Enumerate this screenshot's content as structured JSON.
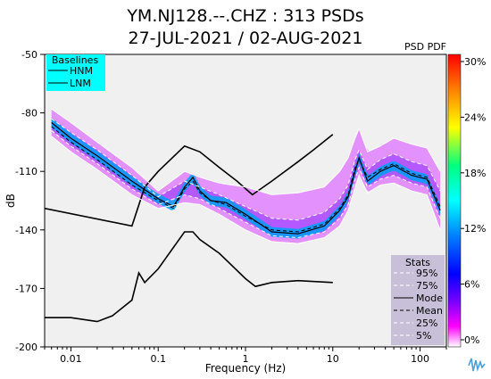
{
  "chart_data": {
    "type": "heatmap",
    "title_line1": "YM.NJ128.--.CHZ : 313 PSDs",
    "title_line2": "27-JUL-2021 / 02-AUG-2021",
    "xlabel": "Frequency (Hz)",
    "ylabel": "dB",
    "x_scale": "log",
    "xlim": [
      0.005,
      200
    ],
    "ylim": [
      -200,
      -50
    ],
    "x_ticks": [
      0.01,
      0.1,
      1,
      10,
      100
    ],
    "x_tick_labels": [
      "0.01",
      "0.1",
      "1 Hz",
      "10",
      "100"
    ],
    "y_ticks": [
      -50,
      -80,
      -110,
      -140,
      -170,
      -200
    ],
    "y_tick_labels": [
      "-50",
      "-80",
      "-110",
      "-140",
      "-170",
      "-200"
    ],
    "colorbar": {
      "label": "PSD PDF",
      "ticks": [
        "30%",
        "24%",
        "18%",
        "12%",
        "6%",
        "0%"
      ],
      "colors": [
        "#ff0000",
        "#ff8000",
        "#ffff00",
        "#00ff80",
        "#00ffff",
        "#0080ff",
        "#0000ff",
        "#8000ff",
        "#ff00ff",
        "#ffffff"
      ]
    },
    "baselines_legend": {
      "title": "Baselines",
      "items": [
        "HNM",
        "LNM"
      ],
      "bg_color": "#00ffff"
    },
    "stats_legend": {
      "title": "Stats",
      "items": [
        {
          "label": "95%",
          "style": "white-dash"
        },
        {
          "label": "75%",
          "style": "white-dash"
        },
        {
          "label": "Mode",
          "style": "black-solid"
        },
        {
          "label": "Mean",
          "style": "black-dash"
        },
        {
          "label": "25%",
          "style": "white-dash"
        },
        {
          "label": "5%",
          "style": "white-dash"
        }
      ],
      "bg_color": "#c8c0d8"
    },
    "series": [
      {
        "name": "HNM",
        "x": [
          0.005,
          0.05,
          0.07,
          0.1,
          0.2,
          0.3,
          0.5,
          0.8,
          1.2,
          2,
          4,
          6,
          10
        ],
        "y": [
          -129,
          -138,
          -118,
          -110,
          -97,
          -100,
          -108,
          -115,
          -122,
          -115,
          -105,
          -99,
          -91
        ]
      },
      {
        "name": "LNM",
        "x": [
          0.005,
          0.01,
          0.02,
          0.03,
          0.05,
          0.06,
          0.07,
          0.1,
          0.2,
          0.25,
          0.3,
          0.5,
          1,
          1.3,
          2,
          4,
          10
        ],
        "y": [
          -185,
          -185,
          -187,
          -184,
          -176,
          -162,
          -167,
          -160,
          -141,
          -141,
          -145,
          -152,
          -165,
          -169,
          -167,
          -166,
          -167
        ]
      },
      {
        "name": "Mode",
        "x": [
          0.006,
          0.01,
          0.02,
          0.05,
          0.1,
          0.15,
          0.2,
          0.25,
          0.3,
          0.4,
          0.6,
          1,
          2,
          4,
          8,
          12,
          15,
          18,
          20,
          25,
          35,
          50,
          80,
          120,
          170
        ],
        "y": [
          -85,
          -93,
          -102,
          -115,
          -124,
          -128,
          -118,
          -113,
          -120,
          -125,
          -126,
          -132,
          -141,
          -142,
          -138,
          -130,
          -123,
          -110,
          -103,
          -115,
          -110,
          -107,
          -112,
          -114,
          -130
        ]
      },
      {
        "name": "Mean",
        "x": [
          0.006,
          0.01,
          0.02,
          0.05,
          0.1,
          0.15,
          0.2,
          0.25,
          0.3,
          0.4,
          0.6,
          1,
          2,
          4,
          8,
          12,
          15,
          18,
          20,
          25,
          35,
          50,
          80,
          120,
          170
        ],
        "y": [
          -87,
          -95,
          -104,
          -117,
          -125,
          -129,
          -119,
          -115,
          -121,
          -125,
          -127,
          -133,
          -140,
          -141,
          -137,
          -129,
          -122,
          -108,
          -104,
          -113,
          -109,
          -106,
          -111,
          -113,
          -128
        ]
      },
      {
        "name": "95%",
        "x": [
          0.006,
          0.01,
          0.02,
          0.05,
          0.1,
          0.2,
          0.3,
          0.5,
          1,
          2,
          4,
          8,
          12,
          15,
          18,
          20,
          25,
          35,
          50,
          80,
          120,
          170
        ],
        "y": [
          -78,
          -85,
          -95,
          -108,
          -120,
          -110,
          -113,
          -116,
          -118,
          -122,
          -121,
          -118,
          -110,
          -103,
          -93,
          -88,
          -100,
          -97,
          -93,
          -96,
          -98,
          -110
        ]
      },
      {
        "name": "75%",
        "x": [
          0.006,
          0.01,
          0.02,
          0.05,
          0.1,
          0.2,
          0.3,
          0.5,
          1,
          2,
          4,
          8,
          12,
          15,
          18,
          20,
          25,
          35,
          50,
          80,
          120,
          170
        ],
        "y": [
          -83,
          -90,
          -99,
          -112,
          -123,
          -115,
          -118,
          -122,
          -128,
          -134,
          -135,
          -131,
          -124,
          -117,
          -104,
          -99,
          -109,
          -104,
          -101,
          -105,
          -107,
          -120
        ]
      },
      {
        "name": "25%",
        "x": [
          0.006,
          0.01,
          0.02,
          0.05,
          0.1,
          0.2,
          0.3,
          0.5,
          1,
          2,
          4,
          8,
          12,
          15,
          18,
          20,
          25,
          35,
          50,
          80,
          120,
          170
        ],
        "y": [
          -89,
          -97,
          -106,
          -119,
          -127,
          -122,
          -124,
          -129,
          -136,
          -143,
          -144,
          -141,
          -134,
          -127,
          -114,
          -108,
          -118,
          -114,
          -112,
          -116,
          -118,
          -134
        ]
      },
      {
        "name": "5%",
        "x": [
          0.006,
          0.01,
          0.02,
          0.05,
          0.1,
          0.2,
          0.3,
          0.5,
          1,
          2,
          4,
          8,
          12,
          15,
          18,
          20,
          25,
          35,
          50,
          80,
          120,
          170
        ],
        "y": [
          -92,
          -100,
          -109,
          -122,
          -129,
          -126,
          -127,
          -132,
          -140,
          -146,
          -147,
          -144,
          -138,
          -130,
          -118,
          -112,
          -121,
          -117,
          -116,
          -120,
          -122,
          -140
        ]
      }
    ]
  }
}
